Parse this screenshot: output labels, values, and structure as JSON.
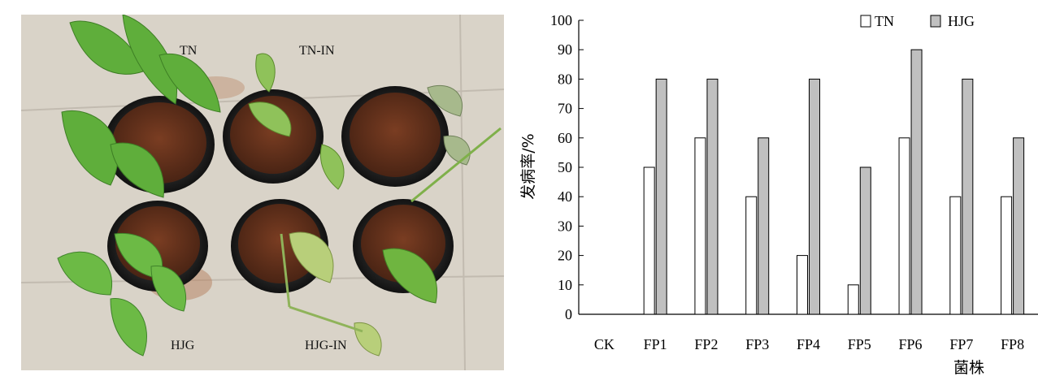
{
  "photo": {
    "labels": {
      "tn": "TN",
      "tn_in": "TN-IN",
      "hjg": "HJG",
      "hjg_in": "HJG-IN"
    }
  },
  "chart_data": {
    "type": "bar",
    "categories": [
      "CK",
      "FP1",
      "FP2",
      "FP3",
      "FP4",
      "FP5",
      "FP6",
      "FP7",
      "FP8"
    ],
    "series": [
      {
        "name": "TN",
        "values": [
          0,
          50,
          60,
          40,
          20,
          10,
          60,
          40,
          40
        ],
        "color": "#ffffff"
      },
      {
        "name": "HJG",
        "values": [
          0,
          80,
          80,
          60,
          80,
          50,
          90,
          80,
          60
        ],
        "color": "#c0c0c0"
      }
    ],
    "ylim": [
      0,
      100
    ],
    "yticks": [
      0,
      10,
      20,
      30,
      40,
      50,
      60,
      70,
      80,
      90,
      100
    ],
    "ylabel": "发病率/%",
    "xlabel": "菌株",
    "legend_position": "top-right",
    "grid": false
  }
}
